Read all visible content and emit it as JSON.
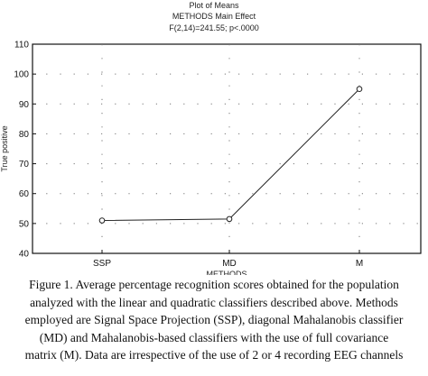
{
  "chart_data": {
    "type": "line",
    "title": "Plot of Means",
    "subtitle": "METHODS Main Effect",
    "statistic": "F(2,14)=241.55; p<.0000",
    "xlabel": "METHODS",
    "ylabel": "True positive",
    "categories": [
      "SSP",
      "MD",
      "M"
    ],
    "series": [
      {
        "values": [
          51,
          51.5,
          95
        ]
      }
    ],
    "ylim": [
      40,
      110
    ],
    "yticks": [
      40,
      50,
      60,
      70,
      80,
      90,
      100,
      110
    ],
    "grid": true,
    "line_color": "#222222"
  },
  "caption": {
    "lines": [
      "Figure 1. Average percentage recognition scores obtained for the population",
      "analyzed with the linear and quadratic classifiers described above. Methods",
      "employed are Signal Space Projection (SSP), diagonal Mahalanobis classifier",
      "(MD) and Mahalanobis-based classifiers with the use of  full covariance",
      "matrix (M). Data are irrespective of the use of 2 or 4 recording EEG channels"
    ]
  }
}
